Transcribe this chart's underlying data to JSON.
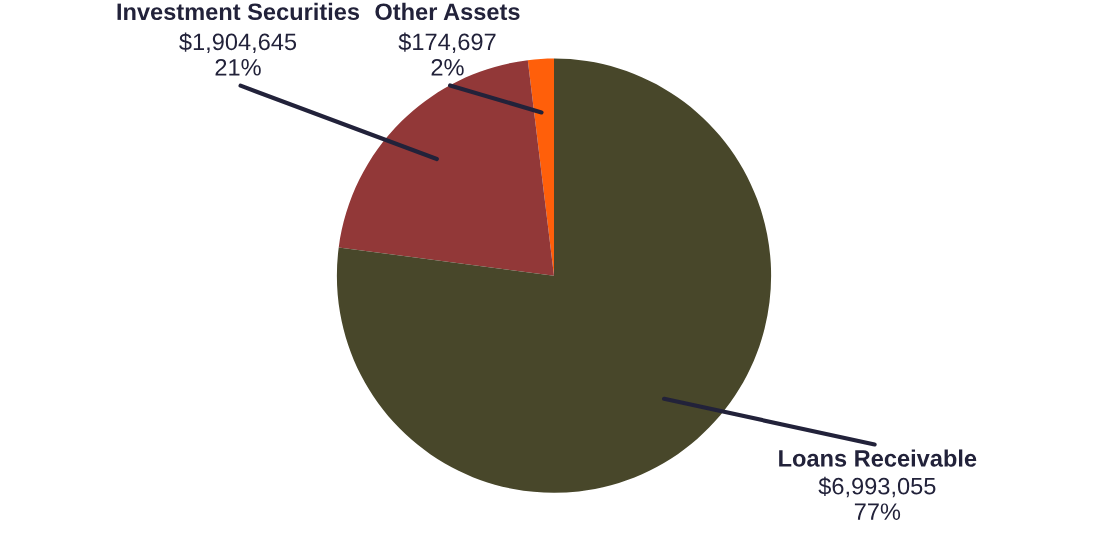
{
  "chart_data": {
    "type": "pie",
    "categories": [
      "Other Assets",
      "Investment Securities",
      "Loans Receivable"
    ],
    "values": [
      174697,
      1904645,
      6993055
    ],
    "colors": [
      "#ff5f0a",
      "#923838",
      "#48472a"
    ],
    "value_labels": [
      "$174,697\n2%",
      "$1,904,645\n21%",
      "$6,993,055\n77%"
    ]
  }
}
